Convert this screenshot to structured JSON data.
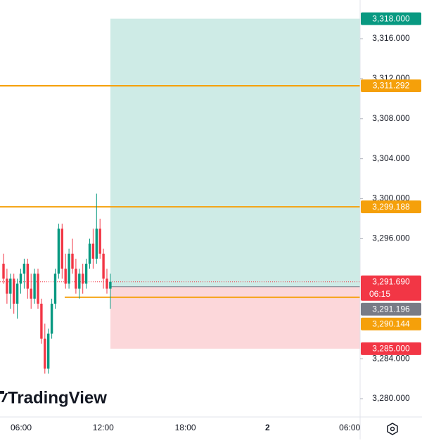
{
  "chart_data": {
    "type": "candlestick",
    "ylim": [
      3278.17,
      3319.87
    ],
    "yticks": [
      {
        "value": 3280,
        "label": "3,280.000"
      },
      {
        "value": 3284,
        "label": "3,284.000"
      },
      {
        "value": 3296,
        "label": "3,296.000"
      },
      {
        "value": 3300,
        "label": "3,300.000"
      },
      {
        "value": 3304,
        "label": "3,304.000"
      },
      {
        "value": 3308,
        "label": "3,308.000"
      },
      {
        "value": 3312,
        "label": "3,312.000"
      },
      {
        "value": 3316,
        "label": "3,316.000"
      }
    ],
    "x_labels": [
      "06:00",
      "12:00",
      "18:00",
      "2",
      "06:00"
    ],
    "up_color": "#089981",
    "down_color": "#f23645",
    "open": [
      3293.5,
      3292,
      3290.5,
      3292,
      3289.5,
      3291.5,
      3292.5,
      3293.5,
      3291,
      3290,
      3292.5,
      3289.5,
      3286,
      3283,
      3286.5,
      3289.5,
      3292.5,
      3297,
      3293,
      3291.5,
      3294.5,
      3293,
      3291,
      3292.5,
      3291.5,
      3293.5,
      3295.5,
      3294,
      3297,
      3294.5,
      3292,
      3291
    ],
    "high": [
      3294.5,
      3293,
      3292.5,
      3292.5,
      3292,
      3293,
      3294,
      3294,
      3292.5,
      3293,
      3293,
      3290,
      3287.5,
      3287,
      3290,
      3293,
      3297.5,
      3297.5,
      3294.5,
      3295,
      3296,
      3294,
      3293,
      3293.5,
      3294,
      3296,
      3297,
      3300.5,
      3298,
      3295,
      3293,
      3292.5
    ],
    "low": [
      3291.5,
      3289.5,
      3289,
      3288.5,
      3288,
      3290.5,
      3291,
      3290,
      3289,
      3289.5,
      3289,
      3285.5,
      3282.5,
      3282.5,
      3286,
      3289,
      3292,
      3292,
      3291,
      3291,
      3292.5,
      3290.5,
      3290,
      3290.5,
      3291,
      3293,
      3293,
      3293.5,
      3294,
      3291,
      3290.5,
      3289
    ],
    "close": [
      3292,
      3290.5,
      3292,
      3289.5,
      3291.5,
      3292.5,
      3293.5,
      3291,
      3290,
      3292.5,
      3289.5,
      3286,
      3283,
      3286.5,
      3289.5,
      3292.5,
      3297,
      3293,
      3291.5,
      3294.5,
      3293,
      3291,
      3292.5,
      3291.5,
      3293.5,
      3295.5,
      3294,
      3297,
      3294.5,
      3292,
      3291,
      3291.69
    ],
    "price_labels": [
      {
        "value": 3318,
        "label": "3,318.000",
        "color": "#089981"
      },
      {
        "value": 3311.292,
        "label": "3,311.292",
        "color": "#f5a00a"
      },
      {
        "value": 3299.188,
        "label": "3,299.188",
        "color": "#f5a00a"
      },
      {
        "value": 3291.69,
        "label": "3,291.690",
        "color": "#f23645",
        "countdown": "06:15"
      },
      {
        "value": 3291.196,
        "label": "3,291.196",
        "color": "#787b86"
      },
      {
        "value": 3290.144,
        "label": "3,290.144",
        "color": "#f5a00a"
      },
      {
        "value": 3285,
        "label": "3,285.000",
        "color": "#f23645"
      }
    ],
    "brand": "TradingView"
  }
}
